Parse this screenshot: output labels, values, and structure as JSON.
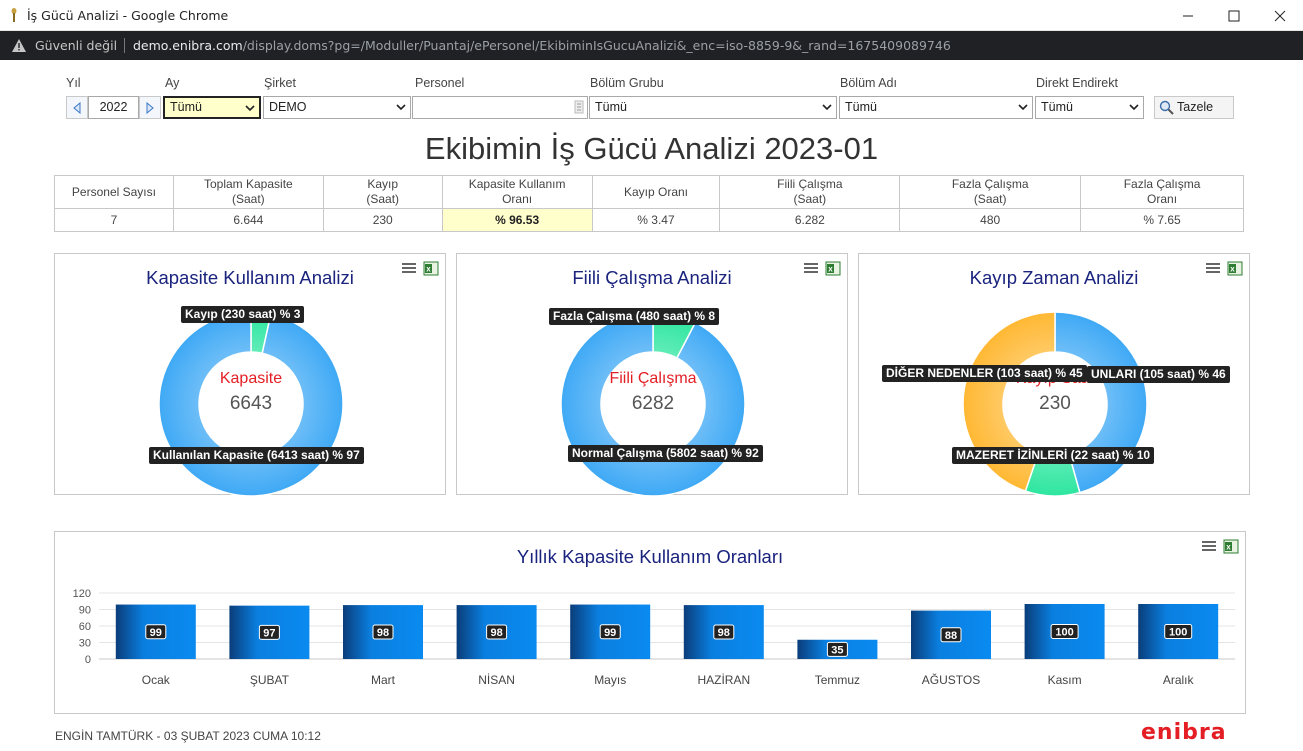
{
  "window": {
    "title": "İş Gücü Analizi - Google Chrome"
  },
  "address": {
    "security": "Güvenli değil",
    "host": "demo.enibra.com",
    "path": "/display.doms?pg=/Moduller/Puantaj/ePersonel/EkibiminIsGucuAnalizi&_enc=iso-8859-9&_rand=1675409089746"
  },
  "filters": {
    "yil_label": "Yıl",
    "yil_value": "2022",
    "ay_label": "Ay",
    "ay_value": "Tümü",
    "sirket_label": "Şirket",
    "sirket_value": "DEMO",
    "personel_label": "Personel",
    "personel_value": "",
    "bolum_grubu_label": "Bölüm Grubu",
    "bolum_grubu_value": "Tümü",
    "bolum_adi_label": "Bölüm Adı",
    "bolum_adi_value": "Tümü",
    "direkt_label": "Direkt Endirekt",
    "direkt_value": "Tümü",
    "refresh_label": "Tazele"
  },
  "page_title": "Ekibimin İş Gücü Analizi 2023-01",
  "summary": {
    "headers": [
      [
        "Personel Sayısı",
        ""
      ],
      [
        "Toplam Kapasite",
        "(Saat)"
      ],
      [
        "Kayıp",
        "(Saat)"
      ],
      [
        "Kapasite Kullanım",
        "Oranı"
      ],
      [
        "Kayıp Oranı",
        ""
      ],
      [
        "Fiili Çalışma",
        "(Saat)"
      ],
      [
        "Fazla Çalışma",
        "(Saat)"
      ],
      [
        "Fazla Çalışma",
        "Oranı"
      ]
    ],
    "values": [
      "7",
      "6.644",
      "230",
      "% 96.53",
      "% 3.47",
      "6.282",
      "480",
      "% 7.65"
    ]
  },
  "charts": {
    "kapasite": {
      "title": "Kapasite Kullanım Analizi",
      "center_name": "Kapasite",
      "center_value": "6643",
      "slices": [
        {
          "label": "Kayıp (230 saat) % 3",
          "value": 230,
          "color": "#2ee6a0"
        },
        {
          "label": "Kullanılan Kapasite (6413 saat) % 97",
          "value": 6413,
          "color": "#3fa9f5"
        }
      ]
    },
    "fiili": {
      "title": "Fiili Çalışma Analizi",
      "center_name": "Fiili Çalışma",
      "center_value": "6282",
      "slices": [
        {
          "label": "Fazla Çalışma (480 saat) % 8",
          "value": 480,
          "color": "#2ee6a0"
        },
        {
          "label": "Normal Çalışma (5802 saat) % 92",
          "value": 5802,
          "color": "#3fa9f5"
        }
      ]
    },
    "kayip": {
      "title": "Kayıp Zaman Analizi",
      "center_name": "Kayıp Saat",
      "center_value": "230",
      "slices": [
        {
          "label": "UNLARI (105 saat) % 46",
          "value": 105,
          "color": "#3fa9f5"
        },
        {
          "label": "MAZERET İZİNLERİ (22 saat) % 10",
          "value": 22,
          "color": "#2ee6a0"
        },
        {
          "label": "DİĞER NEDENLER (103 saat) % 45",
          "value": 103,
          "color": "#ffb833"
        }
      ]
    }
  },
  "chart_data": {
    "type": "bar",
    "title": "Yıllık Kapasite Kullanım Oranları",
    "categories": [
      "Ocak",
      "ŞUBAT",
      "Mart",
      "NİSAN",
      "Mayıs",
      "HAZİRAN",
      "Temmuz",
      "AĞUSTOS",
      "Kasım",
      "Aralık"
    ],
    "values": [
      99,
      97,
      98,
      98,
      99,
      98,
      35,
      88,
      100,
      100
    ],
    "ylim": [
      0,
      120
    ],
    "yticks": [
      0,
      30,
      60,
      90,
      120
    ],
    "xlabel": "",
    "ylabel": "",
    "color": "#0a7fe0",
    "grid": true
  },
  "footer": {
    "user": "ENGİN TAMTÜRK - 03 ŞUBAT 2023 CUMA 10:12",
    "brand": "enibra"
  }
}
